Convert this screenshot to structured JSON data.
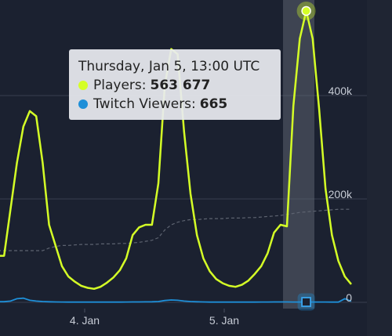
{
  "tooltip": {
    "date": "Thursday, Jan 5, 13:00 UTC",
    "players_label": "Players:",
    "players_value": "563 677",
    "viewers_label": "Twitch Viewers:",
    "viewers_value": "665"
  },
  "colors": {
    "players": "#d5ff26",
    "viewers": "#1e8fd8",
    "background": "#1b2130",
    "gridline": "#3a4050"
  },
  "chart_data": {
    "type": "line",
    "title": "",
    "xlabel": "",
    "ylabel": "",
    "x_tick_labels": [
      "4. Jan",
      "5. Jan"
    ],
    "y_tick_labels": [
      "0",
      "200k",
      "400k"
    ],
    "ylim": [
      0,
      600000
    ],
    "x_start": "2023-01-02 21:00",
    "x_step_hours": 1,
    "series": [
      {
        "name": "Players",
        "values": [
          90000,
          90000,
          180000,
          270000,
          340000,
          370000,
          360000,
          270000,
          150000,
          110000,
          70000,
          50000,
          40000,
          32000,
          28000,
          26000,
          30000,
          38000,
          48000,
          62000,
          85000,
          130000,
          145000,
          150000,
          150000,
          230000,
          420000,
          490000,
          480000,
          330000,
          210000,
          130000,
          85000,
          60000,
          45000,
          37000,
          32000,
          30000,
          34000,
          42000,
          55000,
          70000,
          95000,
          135000,
          150000,
          147000,
          380000,
          510000,
          563677,
          510000,
          375000,
          220000,
          130000,
          80000,
          50000,
          35000
        ]
      },
      {
        "name": "Twitch Viewers",
        "values": [
          1200,
          1200,
          2500,
          7000,
          8000,
          4000,
          2500,
          1500,
          1000,
          800,
          600,
          500,
          400,
          400,
          400,
          400,
          400,
          450,
          500,
          500,
          600,
          700,
          800,
          900,
          1000,
          1500,
          3500,
          4500,
          4000,
          2500,
          1500,
          1000,
          700,
          500,
          450,
          400,
          400,
          400,
          400,
          450,
          500,
          550,
          650,
          700,
          750,
          700,
          600,
          620,
          665,
          650,
          600,
          550,
          500,
          480,
          7000,
          2000
        ]
      },
      {
        "name": "",
        "values": [
          100000,
          100000,
          100000,
          100000,
          100000,
          100000,
          100000,
          100000,
          105000,
          108000,
          110000,
          110000,
          111000,
          112000,
          112000,
          112000,
          113000,
          113000,
          113000,
          114000,
          114000,
          115000,
          116000,
          118000,
          120000,
          125000,
          140000,
          150000,
          155000,
          158000,
          160000,
          160000,
          161000,
          162000,
          162000,
          162000,
          163000,
          163000,
          163000,
          164000,
          164000,
          165000,
          166000,
          167000,
          168000,
          170000,
          172000,
          174000,
          175000,
          176000,
          177000,
          178000,
          179000,
          180000,
          180000,
          180000
        ]
      }
    ],
    "highlight_index": 48,
    "grid": true
  }
}
